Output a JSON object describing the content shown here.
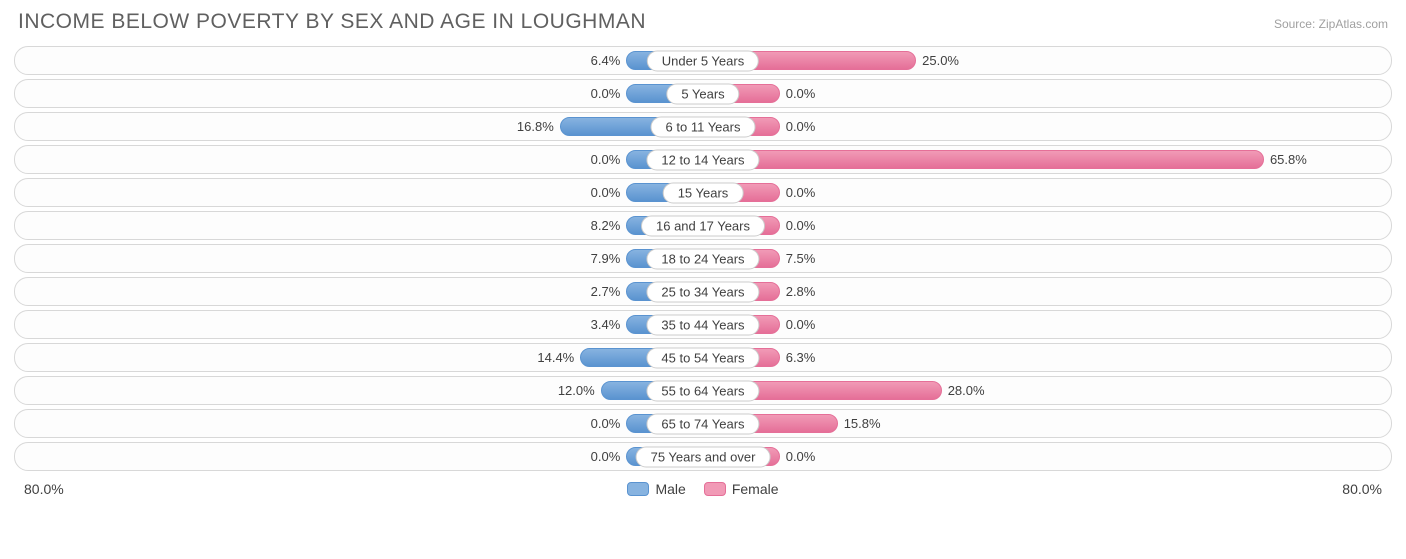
{
  "title": "INCOME BELOW POVERTY BY SEX AND AGE IN LOUGHMAN",
  "source": "Source: ZipAtlas.com",
  "chart": {
    "type": "diverging-bar",
    "axis_max_pct": 80.0,
    "male_axis_label": "80.0%",
    "female_axis_label": "80.0%",
    "min_bar_pct": 9.0,
    "colors": {
      "male_fill": "#87b3e0",
      "male_border": "#5a93d0",
      "female_fill": "#f19ab6",
      "female_border": "#e56f98",
      "row_border": "#d8d8d8",
      "background": "#ffffff",
      "text": "#404040",
      "title_text": "#606060",
      "source_text": "#a0a0a0"
    },
    "legend": {
      "male": "Male",
      "female": "Female"
    },
    "rows": [
      {
        "label": "Under 5 Years",
        "male": 6.4,
        "female": 25.0
      },
      {
        "label": "5 Years",
        "male": 0.0,
        "female": 0.0
      },
      {
        "label": "6 to 11 Years",
        "male": 16.8,
        "female": 0.0
      },
      {
        "label": "12 to 14 Years",
        "male": 0.0,
        "female": 65.8
      },
      {
        "label": "15 Years",
        "male": 0.0,
        "female": 0.0
      },
      {
        "label": "16 and 17 Years",
        "male": 8.2,
        "female": 0.0
      },
      {
        "label": "18 to 24 Years",
        "male": 7.9,
        "female": 7.5
      },
      {
        "label": "25 to 34 Years",
        "male": 2.7,
        "female": 2.8
      },
      {
        "label": "35 to 44 Years",
        "male": 3.4,
        "female": 0.0
      },
      {
        "label": "45 to 54 Years",
        "male": 14.4,
        "female": 6.3
      },
      {
        "label": "55 to 64 Years",
        "male": 12.0,
        "female": 28.0
      },
      {
        "label": "65 to 74 Years",
        "male": 0.0,
        "female": 15.8
      },
      {
        "label": "75 Years and over",
        "male": 0.0,
        "female": 0.0
      }
    ]
  }
}
